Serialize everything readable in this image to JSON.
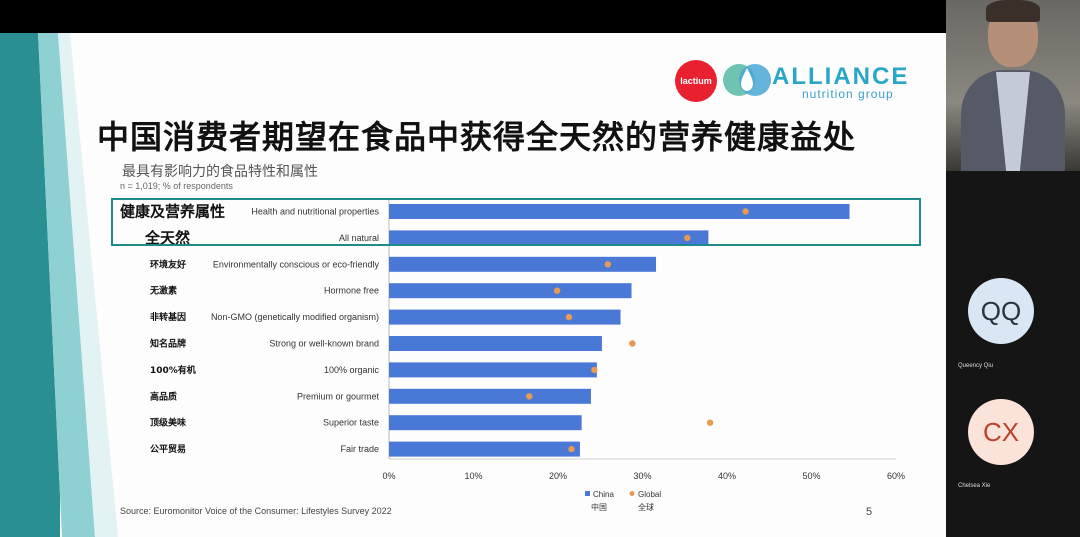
{
  "slide": {
    "title": "中国消费者期望在食品中获得全天然的营养健康益处",
    "subtitle": "最具有影响力的食品特性和属性",
    "note": "n = 1,019; % of respondents",
    "source": "Source: Euromonitor Voice of the Consumer: Lifestyles Survey 2022",
    "page_number": "5",
    "logos": {
      "lactium": "lactium",
      "alliance_name": "ALLIANCE",
      "alliance_sub": "nutrition group"
    }
  },
  "chart_data": {
    "type": "bar",
    "orientation": "horizontal",
    "categories_cn": [
      "健康及营养属性",
      "全天然",
      "环境友好",
      "无激素",
      "非转基因",
      "知名品牌",
      "100%有机",
      "高品质",
      "顶级美味",
      "公平贸易"
    ],
    "categories_en": [
      "Health and nutritional properties",
      "All natural",
      "Environmentally conscious or eco-friendly",
      "Hormone free",
      "Non-GMO (genetically modified organism)",
      "Strong or well-known brand",
      "100% organic",
      "Premium or gourmet",
      "Superior taste",
      "Fair trade"
    ],
    "series": [
      {
        "name": "China",
        "name_cn": "中国",
        "type": "bar",
        "color": "#4a78d6",
        "values": [
          54.5,
          37.8,
          31.6,
          28.7,
          27.4,
          25.2,
          24.6,
          23.9,
          22.8,
          22.6
        ]
      },
      {
        "name": "Global",
        "name_cn": "全球",
        "type": "dot",
        "color": "#e79a54",
        "values": [
          42.2,
          35.3,
          25.9,
          19.9,
          21.3,
          28.8,
          24.3,
          16.6,
          38.0,
          21.6
        ]
      }
    ],
    "xlim": [
      0,
      60
    ],
    "xticks": [
      "0%",
      "10%",
      "20%",
      "30%",
      "40%",
      "50%",
      "60%"
    ],
    "highlighted_rows": 2,
    "legend_position": "bottom-right"
  },
  "participants": [
    {
      "initials": "QQ",
      "name": "Queency Qiu"
    },
    {
      "initials": "CX",
      "name": "Chelsea Xie"
    }
  ]
}
